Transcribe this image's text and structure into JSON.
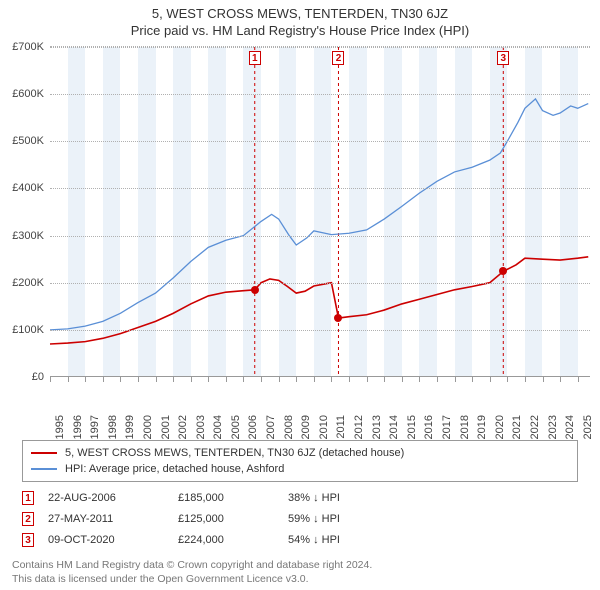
{
  "title_line1": "5, WEST CROSS MEWS, TENTERDEN, TN30 6JZ",
  "title_line2": "Price paid vs. HM Land Registry's House Price Index (HPI)",
  "chart": {
    "type": "line",
    "background_color": "#ffffff",
    "grid_color": "#b0b0b0",
    "band_color": "#ebf2f9",
    "x_years": [
      1995,
      1996,
      1997,
      1998,
      1999,
      2000,
      2001,
      2002,
      2003,
      2004,
      2005,
      2006,
      2007,
      2008,
      2009,
      2010,
      2011,
      2012,
      2013,
      2014,
      2015,
      2016,
      2017,
      2018,
      2019,
      2020,
      2021,
      2022,
      2023,
      2024,
      2025
    ],
    "y_ticks": [
      0,
      100000,
      200000,
      300000,
      400000,
      500000,
      600000,
      700000
    ],
    "y_tick_labels": [
      "£0",
      "£100K",
      "£200K",
      "£300K",
      "£400K",
      "£500K",
      "£600K",
      "£700K"
    ],
    "ylim": [
      0,
      700000
    ],
    "xlim": [
      1995,
      2025.7
    ],
    "band_years": [
      1996,
      1998,
      2000,
      2002,
      2004,
      2006,
      2008,
      2010,
      2012,
      2014,
      2016,
      2018,
      2020,
      2022,
      2024
    ],
    "series": [
      {
        "name": "property",
        "color": "#cc0000",
        "line_width": 1.6,
        "legend": "5, WEST CROSS MEWS, TENTERDEN, TN30 6JZ (detached house)",
        "points": [
          [
            1995.0,
            70000
          ],
          [
            1996.0,
            72000
          ],
          [
            1997.0,
            75000
          ],
          [
            1998.0,
            82000
          ],
          [
            1999.0,
            92000
          ],
          [
            2000.0,
            105000
          ],
          [
            2001.0,
            118000
          ],
          [
            2002.0,
            135000
          ],
          [
            2003.0,
            155000
          ],
          [
            2004.0,
            172000
          ],
          [
            2005.0,
            180000
          ],
          [
            2006.0,
            183000
          ],
          [
            2006.64,
            185000
          ],
          [
            2007.0,
            200000
          ],
          [
            2007.5,
            208000
          ],
          [
            2008.0,
            205000
          ],
          [
            2008.5,
            192000
          ],
          [
            2009.0,
            178000
          ],
          [
            2009.5,
            182000
          ],
          [
            2010.0,
            193000
          ],
          [
            2010.7,
            198000
          ],
          [
            2011.0,
            200000
          ],
          [
            2011.4,
            125000
          ],
          [
            2012.0,
            128000
          ],
          [
            2013.0,
            132000
          ],
          [
            2014.0,
            142000
          ],
          [
            2015.0,
            155000
          ],
          [
            2016.0,
            165000
          ],
          [
            2017.0,
            175000
          ],
          [
            2018.0,
            185000
          ],
          [
            2019.0,
            192000
          ],
          [
            2020.0,
            200000
          ],
          [
            2020.77,
            224000
          ],
          [
            2021.5,
            238000
          ],
          [
            2022.0,
            252000
          ],
          [
            2023.0,
            250000
          ],
          [
            2024.0,
            248000
          ],
          [
            2025.0,
            252000
          ],
          [
            2025.6,
            255000
          ]
        ]
      },
      {
        "name": "hpi",
        "color": "#5a8fd6",
        "line_width": 1.3,
        "legend": "HPI: Average price, detached house, Ashford",
        "points": [
          [
            1995.0,
            100000
          ],
          [
            1996.0,
            102000
          ],
          [
            1997.0,
            108000
          ],
          [
            1998.0,
            118000
          ],
          [
            1999.0,
            135000
          ],
          [
            2000.0,
            158000
          ],
          [
            2001.0,
            178000
          ],
          [
            2002.0,
            210000
          ],
          [
            2003.0,
            245000
          ],
          [
            2004.0,
            275000
          ],
          [
            2005.0,
            290000
          ],
          [
            2006.0,
            300000
          ],
          [
            2007.0,
            330000
          ],
          [
            2007.6,
            345000
          ],
          [
            2008.0,
            335000
          ],
          [
            2008.6,
            300000
          ],
          [
            2009.0,
            280000
          ],
          [
            2009.6,
            295000
          ],
          [
            2010.0,
            310000
          ],
          [
            2011.0,
            302000
          ],
          [
            2012.0,
            305000
          ],
          [
            2013.0,
            312000
          ],
          [
            2014.0,
            335000
          ],
          [
            2015.0,
            362000
          ],
          [
            2016.0,
            390000
          ],
          [
            2017.0,
            415000
          ],
          [
            2018.0,
            435000
          ],
          [
            2019.0,
            445000
          ],
          [
            2020.0,
            460000
          ],
          [
            2020.6,
            475000
          ],
          [
            2021.0,
            500000
          ],
          [
            2021.6,
            540000
          ],
          [
            2022.0,
            570000
          ],
          [
            2022.6,
            590000
          ],
          [
            2023.0,
            565000
          ],
          [
            2023.6,
            555000
          ],
          [
            2024.0,
            560000
          ],
          [
            2024.6,
            575000
          ],
          [
            2025.0,
            570000
          ],
          [
            2025.6,
            580000
          ]
        ]
      }
    ],
    "sale_markers": [
      {
        "n": "1",
        "x": 2006.64,
        "date": "22-AUG-2006",
        "price_label": "£185,000",
        "price": 185000,
        "delta": "38% ↓ HPI"
      },
      {
        "n": "2",
        "x": 2011.4,
        "date": "27-MAY-2011",
        "price_label": "£125,000",
        "price": 125000,
        "delta": "59% ↓ HPI"
      },
      {
        "n": "3",
        "x": 2020.77,
        "date": "09-OCT-2020",
        "price_label": "£224,000",
        "price": 224000,
        "delta": "54% ↓ HPI"
      }
    ]
  },
  "footer_line1": "Contains HM Land Registry data © Crown copyright and database right 2024.",
  "footer_line2": "This data is licensed under the Open Government Licence v3.0."
}
